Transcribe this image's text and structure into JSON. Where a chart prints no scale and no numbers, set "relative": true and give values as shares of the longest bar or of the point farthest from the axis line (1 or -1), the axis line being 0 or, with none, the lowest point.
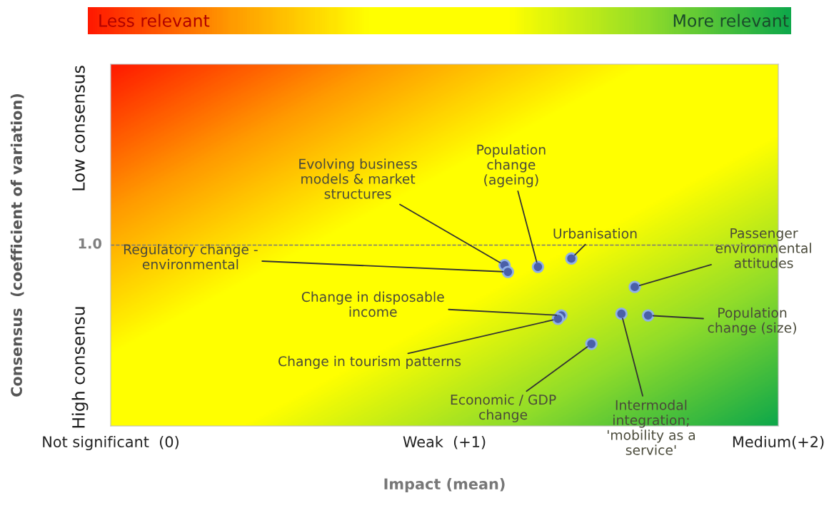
{
  "chart_data": {
    "type": "scatter",
    "xlabel": "Impact (mean)",
    "ylabel": "Consensus  (coefficient of variation)",
    "xlim": [
      0,
      2
    ],
    "relative": true,
    "xticks": [
      {
        "value": 0,
        "label": "Not significant  (0)"
      },
      {
        "value": 1,
        "label": "Weak  (+1)"
      },
      {
        "value": 2,
        "label": "Medium(+2)"
      }
    ],
    "grid": false,
    "legend": false,
    "marker": "circle",
    "ref_lines": [
      {
        "axis": "y",
        "value": 1.08,
        "color": "#777777",
        "line_style": "dashed"
      }
    ],
    "series": [
      {
        "color": "#4a5fa8",
        "x": [
          1.18,
          1.19,
          1.28,
          1.38,
          1.57,
          1.35,
          1.34,
          1.53,
          1.61,
          1.44
        ],
        "values": [
          0.96,
          0.92,
          0.95,
          1,
          0.83,
          0.66,
          0.64,
          0.67,
          0.66,
          0.49
        ]
      }
    ],
    "annotations": [
      {
        "text": "Evolving business\nmodels & market\nstructures",
        "x": 1.18,
        "y": 0.96
      },
      {
        "text": "Regulatory change -\nenvironmental",
        "x": 1.19,
        "y": 0.92
      },
      {
        "text": "Population\nchange\n(ageing)",
        "x": 1.28,
        "y": 0.95
      },
      {
        "text": "Urbanisation",
        "x": 1.38,
        "y": 1
      },
      {
        "text": "Passenger\nenvironmental\nattitudes",
        "x": 1.57,
        "y": 0.83
      },
      {
        "text": "Change in disposable\nincome",
        "x": 1.35,
        "y": 0.66
      },
      {
        "text": "Change in tourism patterns",
        "x": 1.34,
        "y": 0.64
      },
      {
        "text": "Intermodal\nintegration;\n'mobility as a\nservice'",
        "x": 1.53,
        "y": 0.67
      },
      {
        "text": "Population\nchange (size)",
        "x": 1.61,
        "y": 0.66
      },
      {
        "text": "Economic / GDP\nchange",
        "x": 1.44,
        "y": 0.49
      },
      "1.0",
      "Less relevant",
      "More relevant",
      "Low consensus",
      "High consensu"
    ]
  }
}
